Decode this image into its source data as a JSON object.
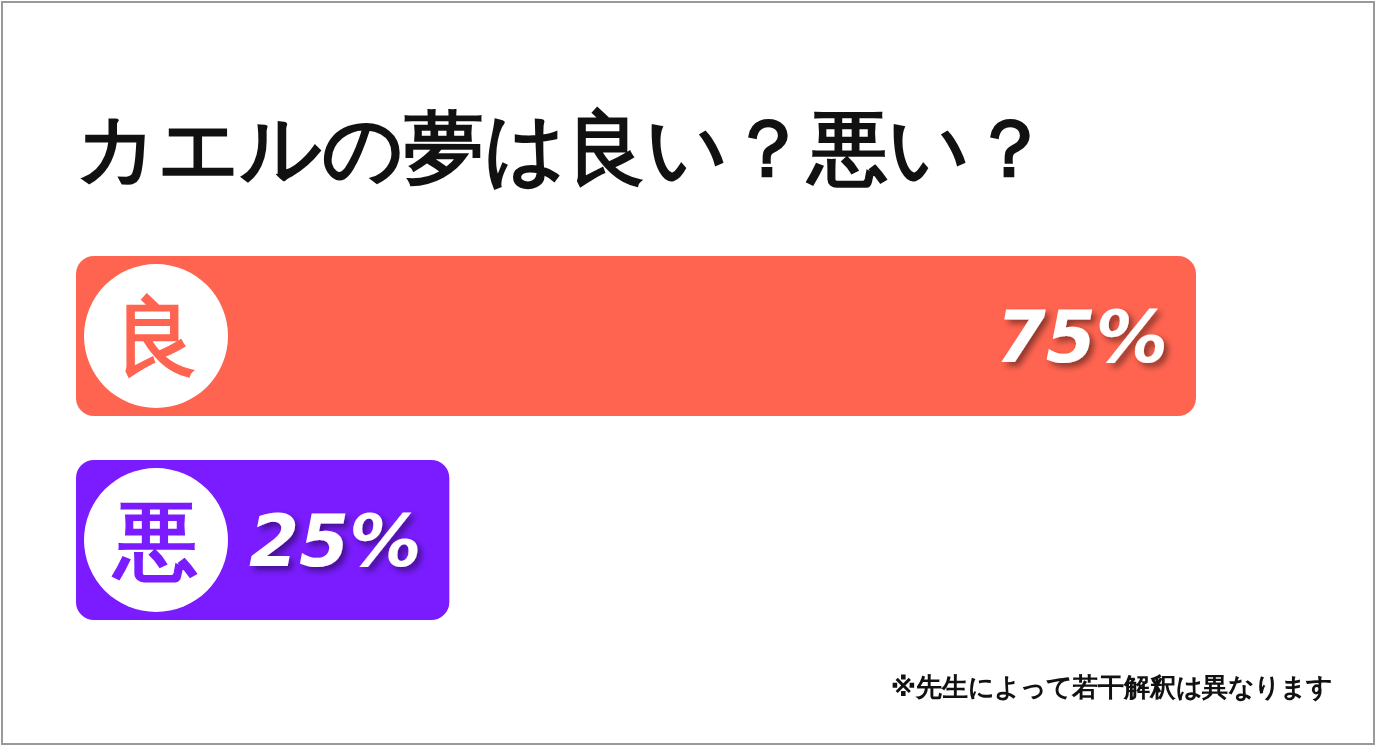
{
  "chart_data": {
    "type": "bar",
    "orientation": "horizontal",
    "title": "カエルの夢は良い？悪い？",
    "categories": [
      "良",
      "悪"
    ],
    "values": [
      75,
      25
    ],
    "colors": [
      "#ff6450",
      "#7a1cff"
    ],
    "value_labels": [
      "75%",
      "25%"
    ],
    "annotations": [
      "※先生によって若干解釈は異なります"
    ]
  }
}
